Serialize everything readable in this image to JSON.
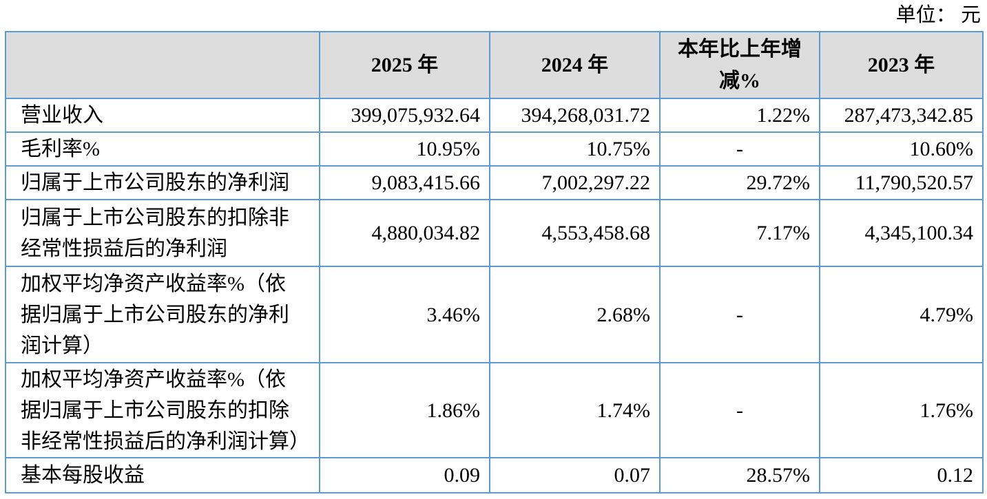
{
  "unit_label": "单位： 元",
  "colors": {
    "table_border": "#5B9BD5",
    "header_background": "#DDDDDD",
    "text": "#000000"
  },
  "table": {
    "columns": [
      "",
      "2025 年",
      "2024 年",
      "本年比上年增减%",
      "2023 年"
    ],
    "rows": [
      {
        "label": "营业收入",
        "values": [
          "399,075,932.64",
          "394,268,031.72",
          "1.22%",
          "287,473,342.85"
        ]
      },
      {
        "label": "毛利率%",
        "values": [
          "10.95%",
          "10.75%",
          "-",
          "10.60%"
        ]
      },
      {
        "label": "归属于上市公司股东的净利润",
        "values": [
          "9,083,415.66",
          "7,002,297.22",
          "29.72%",
          "11,790,520.57"
        ]
      },
      {
        "label": "归属于上市公司股东的扣除非经常性损益后的净利润",
        "values": [
          "4,880,034.82",
          "4,553,458.68",
          "7.17%",
          "4,345,100.34"
        ]
      },
      {
        "label": "加权平均净资产收益率%（依据归属于上市公司股东的净利润计算）",
        "values": [
          "3.46%",
          "2.68%",
          "-",
          "4.79%"
        ]
      },
      {
        "label": "加权平均净资产收益率%（依据归属于上市公司股东的扣除非经常性损益后的净利润计算）",
        "values": [
          "1.86%",
          "1.74%",
          "-",
          "1.76%"
        ]
      },
      {
        "label": "基本每股收益",
        "values": [
          "0.09",
          "0.07",
          "28.57%",
          "0.12"
        ]
      }
    ]
  }
}
